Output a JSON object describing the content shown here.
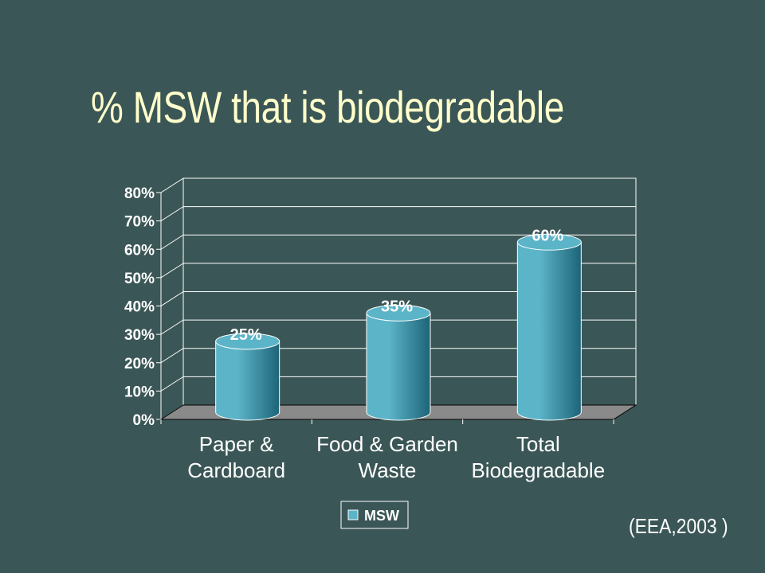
{
  "slide": {
    "title": "% MSW that is biodegradable",
    "source": "(EEA,2003 )"
  },
  "colors": {
    "background": "#3b5656",
    "title": "#ffffcc",
    "bar_light": "#5cb4c8",
    "bar_dark": "#1d6478",
    "floor": "#8a8a8a"
  },
  "chart_data": {
    "type": "bar",
    "categories": [
      [
        "Paper &",
        "Cardboard"
      ],
      [
        "Food & Garden",
        "Waste"
      ],
      [
        "Total",
        "Biodegradable"
      ]
    ],
    "series": [
      {
        "name": "MSW",
        "values": [
          25,
          35,
          60
        ]
      }
    ],
    "data_labels": [
      "25%",
      "35%",
      "60%"
    ],
    "ylim": [
      0,
      80
    ],
    "yticks": [
      "0%",
      "10%",
      "20%",
      "30%",
      "40%",
      "50%",
      "60%",
      "70%",
      "80%"
    ],
    "grid": true,
    "legend_position": "bottom",
    "style": "3d-cylinder"
  }
}
